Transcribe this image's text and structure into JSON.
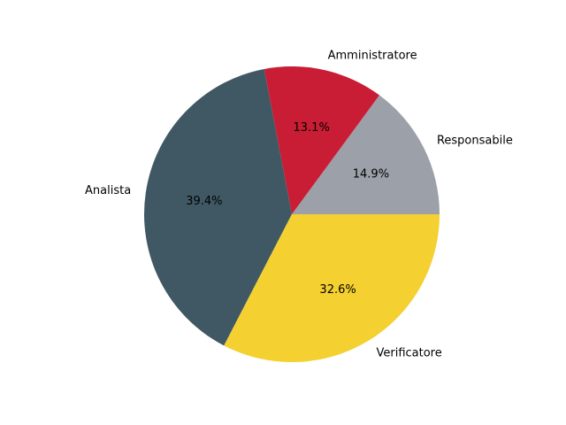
{
  "chart_data": {
    "type": "pie",
    "title": "",
    "start_angle_deg": 0,
    "direction": "counterclockwise",
    "slices": [
      {
        "label": "Responsabile",
        "value": 14.9,
        "pct_text": "14.9%",
        "color": "#9ca0a8"
      },
      {
        "label": "Amministratore",
        "value": 13.1,
        "pct_text": "13.1%",
        "color": "#c81d34"
      },
      {
        "label": "Analista",
        "value": 39.4,
        "pct_text": "39.4%",
        "color": "#405864"
      },
      {
        "label": "Verificatore",
        "value": 32.6,
        "pct_text": "32.6%",
        "color": "#f4d031"
      }
    ]
  }
}
